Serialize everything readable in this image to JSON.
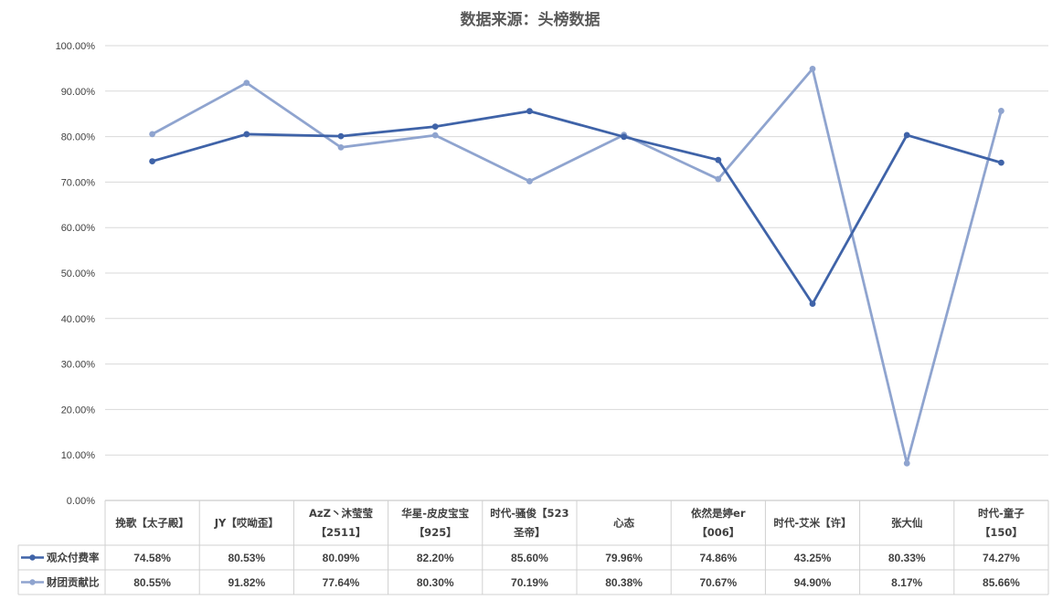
{
  "chart_data": {
    "type": "line",
    "title": "数据来源：头榜数据",
    "xlabel": "",
    "ylabel": "",
    "ylim": [
      0,
      100
    ],
    "ytick_labels": [
      "0.00%",
      "10.00%",
      "20.00%",
      "30.00%",
      "40.00%",
      "50.00%",
      "60.00%",
      "70.00%",
      "80.00%",
      "90.00%",
      "100.00%"
    ],
    "categories": [
      [
        "挽歌【太子殿】"
      ],
      [
        "JY【哎呦歪】"
      ],
      [
        "AzZ丶沐莹莹",
        "【2511】"
      ],
      [
        "华星-皮皮宝宝",
        "【925】"
      ],
      [
        "时代-骚俊【523",
        "圣帝】"
      ],
      [
        "心态"
      ],
      [
        "依然是婷er",
        "【006】"
      ],
      [
        "时代-艾米【许】"
      ],
      [
        "张大仙"
      ],
      [
        "时代-童子",
        "【150】"
      ]
    ],
    "series": [
      {
        "name": "观众付费率",
        "color": "#3f63a8",
        "values": [
          74.58,
          80.53,
          80.09,
          82.2,
          85.6,
          79.96,
          74.86,
          43.25,
          80.33,
          74.27
        ],
        "labels": [
          "74.58%",
          "80.53%",
          "80.09%",
          "82.20%",
          "85.60%",
          "79.96%",
          "74.86%",
          "43.25%",
          "80.33%",
          "74.27%"
        ]
      },
      {
        "name": "财团贡献比",
        "color": "#8fa4cf",
        "values": [
          80.55,
          91.82,
          77.64,
          80.3,
          70.19,
          80.38,
          70.67,
          94.9,
          8.17,
          85.66
        ],
        "labels": [
          "80.55%",
          "91.82%",
          "77.64%",
          "80.30%",
          "70.19%",
          "80.38%",
          "70.67%",
          "94.90%",
          "8.17%",
          "85.66%"
        ]
      }
    ],
    "grid": true,
    "legend": "data-table"
  }
}
